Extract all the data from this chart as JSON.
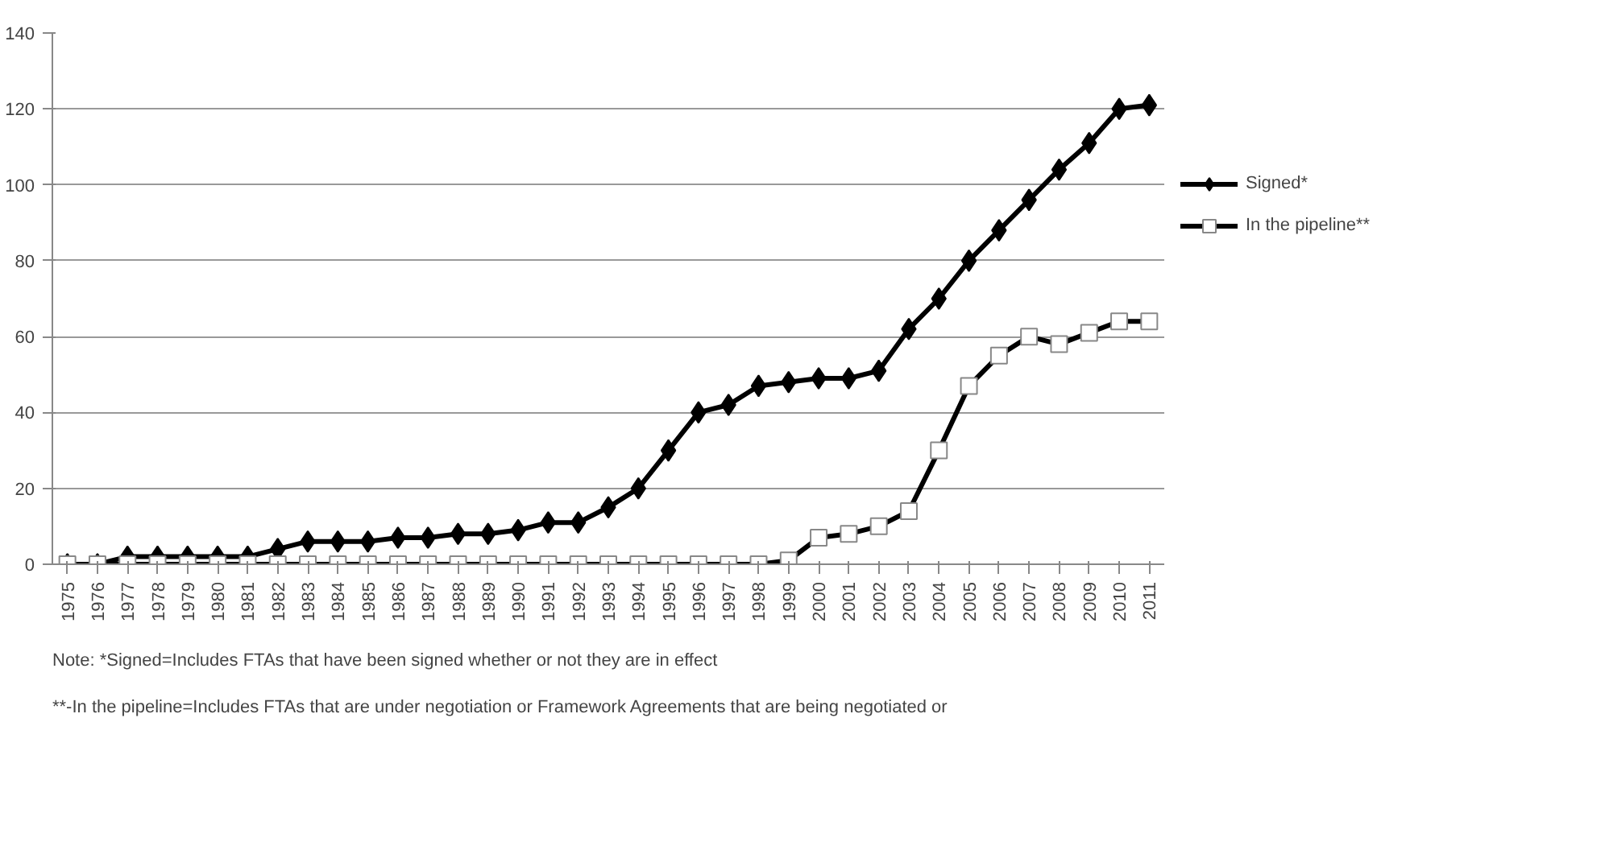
{
  "chart_data": {
    "type": "line",
    "categories": [
      "1975",
      "1976",
      "1977",
      "1978",
      "1979",
      "1980",
      "1981",
      "1982",
      "1983",
      "1984",
      "1985",
      "1986",
      "1987",
      "1988",
      "1989",
      "1990",
      "1991",
      "1992",
      "1993",
      "1994",
      "1995",
      "1996",
      "1997",
      "1998",
      "1999",
      "2000",
      "2001",
      "2002",
      "2003",
      "2004",
      "2005",
      "2006",
      "2007",
      "2008",
      "2009",
      "2010",
      "2011"
    ],
    "series": [
      {
        "name": "Signed*",
        "color": "#000000",
        "marker": "diamond",
        "values": [
          0,
          0,
          2,
          2,
          2,
          2,
          2,
          4,
          6,
          6,
          6,
          7,
          7,
          8,
          8,
          9,
          11,
          11,
          15,
          20,
          30,
          40,
          42,
          47,
          48,
          49,
          49,
          51,
          62,
          70,
          80,
          88,
          96,
          104,
          111,
          120,
          121
        ]
      },
      {
        "name": "In the pipeline**",
        "color": "#000000",
        "marker": "square",
        "values": [
          0,
          0,
          0,
          0,
          0,
          0,
          0,
          0,
          0,
          0,
          0,
          0,
          0,
          0,
          0,
          0,
          0,
          0,
          0,
          0,
          0,
          0,
          0,
          0,
          1,
          7,
          8,
          10,
          14,
          30,
          47,
          55,
          60,
          58,
          61,
          64,
          64
        ]
      }
    ],
    "ylim": [
      0,
      140
    ],
    "yticks": [
      0,
      20,
      40,
      60,
      80,
      100,
      120,
      140
    ],
    "grid": "y",
    "legend": "right",
    "line_style": "solid",
    "annotations": [
      "Note: *Signed=Includes FTAs  that have been signed whether or not they are in effect",
      "**-In the pipeline=Includes FTAs that are under negotiation or Framework Agreements  that are being negotiated or"
    ]
  }
}
